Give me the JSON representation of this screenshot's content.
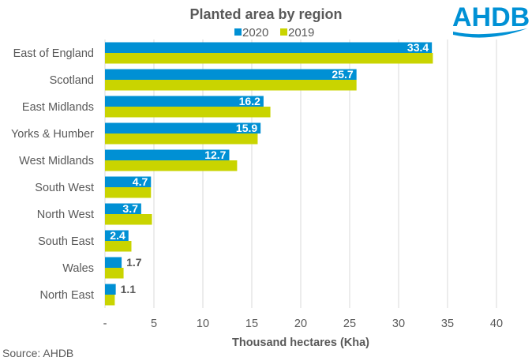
{
  "logo": {
    "text": "AHDB",
    "color": "#0091d5"
  },
  "source": "Source: AHDB",
  "colors": {
    "2020": "#0090d4",
    "2019": "#c9d400",
    "grid": "#d9d9d9",
    "text": "#595959"
  },
  "chart_data": {
    "type": "bar",
    "orientation": "horizontal",
    "title": "Planted area by region",
    "xlabel": "Thousand hectares (Kha)",
    "ylabel": "",
    "xlim": [
      0,
      40
    ],
    "xticks": [
      0,
      5,
      10,
      15,
      20,
      25,
      30,
      35,
      40
    ],
    "xtick_labels": [
      "-",
      "5",
      "10",
      "15",
      "20",
      "25",
      "30",
      "35",
      "40"
    ],
    "grid": "vertical",
    "legend": {
      "position": "top-center",
      "entries": [
        "2020",
        "2019"
      ]
    },
    "categories": [
      "East of England",
      "Scotland",
      "East Midlands",
      "Yorks & Humber",
      "West Midlands",
      "South West",
      "North West",
      "South East",
      "Wales",
      "North East"
    ],
    "series": [
      {
        "name": "2020",
        "values": [
          33.4,
          25.7,
          16.2,
          15.9,
          12.7,
          4.7,
          3.7,
          2.4,
          1.7,
          1.1
        ],
        "data_labels": [
          "33.4",
          "25.7",
          "16.2",
          "15.9",
          "12.7",
          "4.7",
          "3.7",
          "2.4",
          "1.7",
          "1.1"
        ]
      },
      {
        "name": "2019",
        "values": [
          33.5,
          25.7,
          16.9,
          15.6,
          13.5,
          4.7,
          4.8,
          2.7,
          1.9,
          1.0
        ]
      }
    ]
  }
}
